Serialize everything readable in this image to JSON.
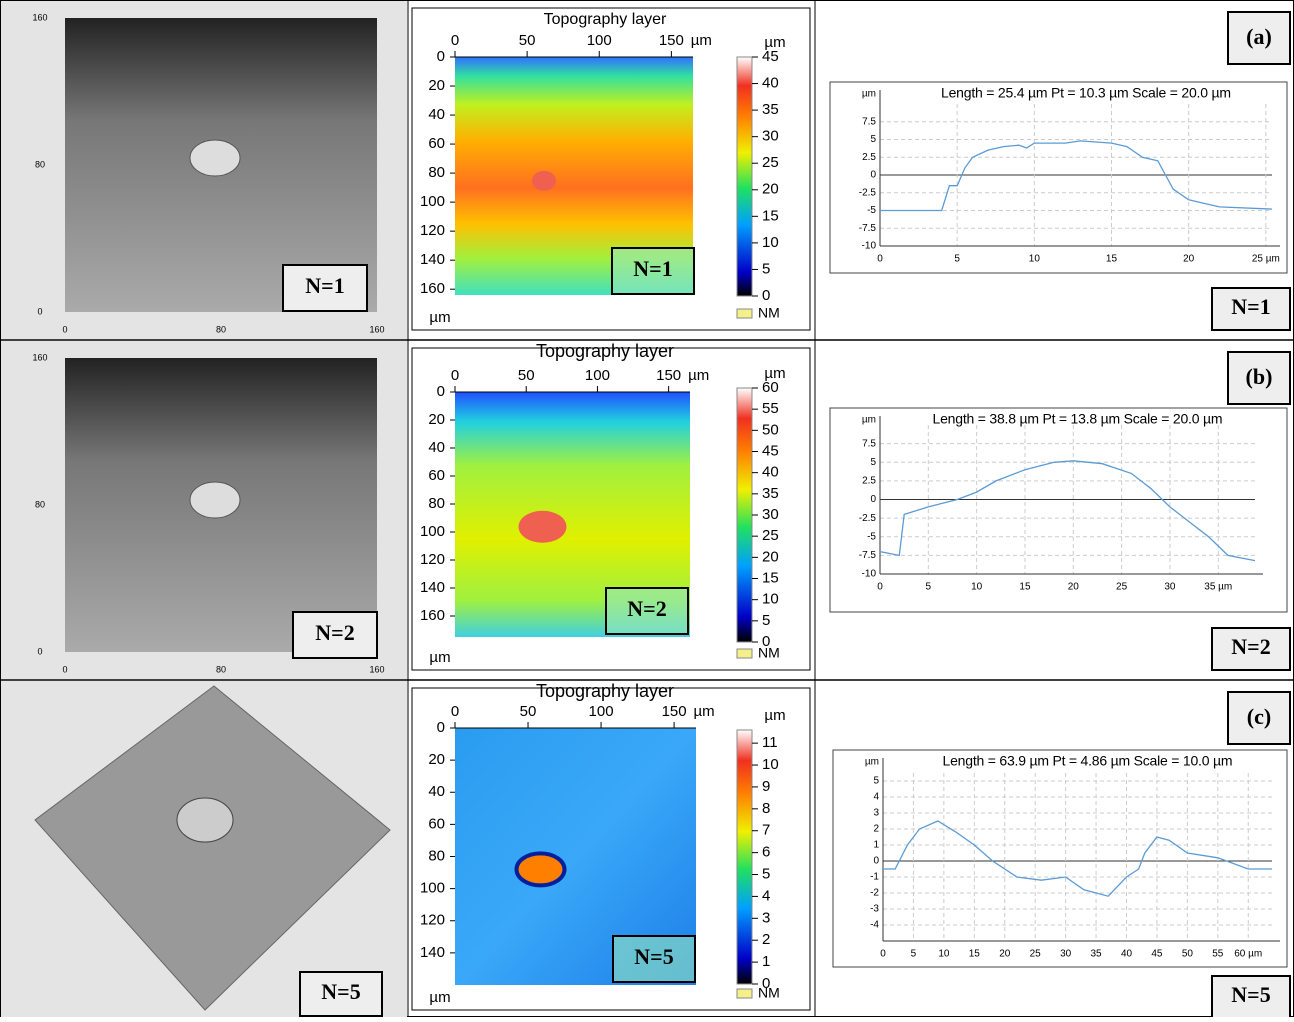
{
  "panels": [
    {
      "label": "(a)",
      "n_label": "N=1",
      "micrograph": {
        "ticks": [
          0,
          80,
          160
        ],
        "lim": [
          0,
          160
        ]
      },
      "topography": {
        "title": "Topography layer",
        "xticks": [
          0,
          50,
          100,
          150
        ],
        "x_unit": "µm",
        "xlim": [
          0,
          165
        ],
        "yticks": [
          0,
          20,
          40,
          60,
          80,
          100,
          120,
          140,
          160
        ],
        "ylim": [
          0,
          164
        ],
        "y_unit": "µm",
        "colorbar_unit": "µm",
        "colorbar_ticks": [
          0,
          5,
          10,
          15,
          20,
          25,
          30,
          35,
          40,
          45
        ],
        "colorbar_lim": [
          0,
          45
        ],
        "nm_label": "NM"
      },
      "profile": {
        "header": "Length = 25.4 µm  Pt = 10.3 µm  Scale = 20.0 µm",
        "y_unit": "µm",
        "color": "#5b9bd5",
        "xlim": [
          0,
          25.4
        ],
        "ylim": [
          -10,
          10
        ],
        "xticks": [
          0,
          5,
          10,
          15,
          20,
          {
            "value": 25,
            "label": "25 µm"
          }
        ],
        "yticks": [
          7.5,
          5,
          2.5,
          0,
          -2.5,
          -5,
          -7.5,
          -10
        ],
        "x": [
          0,
          4,
          4.5,
          5,
          5.5,
          6,
          7,
          8,
          9,
          9.5,
          10,
          12,
          13,
          15,
          16,
          17,
          18,
          18.5,
          19,
          20,
          21,
          22,
          25.4
        ],
        "values": [
          -5,
          -5,
          -1.5,
          -1.5,
          1,
          2.5,
          3.5,
          4,
          4.2,
          3.8,
          4.5,
          4.5,
          4.8,
          4.5,
          4,
          2.5,
          2,
          0,
          -2,
          -3.5,
          -4,
          -4.5,
          -4.8
        ]
      }
    },
    {
      "label": "(b)",
      "n_label": "N=2",
      "micrograph": {
        "ticks": [
          0,
          80,
          160
        ],
        "lim": [
          0,
          160
        ]
      },
      "topography": {
        "title": "Topography layer",
        "xticks": [
          0,
          50,
          100,
          150
        ],
        "x_unit": "µm",
        "xlim": [
          0,
          165
        ],
        "yticks": [
          0,
          20,
          40,
          60,
          80,
          100,
          120,
          140,
          160
        ],
        "ylim": [
          0,
          175
        ],
        "y_unit": "µm",
        "colorbar_unit": "µm",
        "colorbar_ticks": [
          0,
          5,
          10,
          15,
          20,
          25,
          30,
          35,
          40,
          45,
          50,
          55,
          60
        ],
        "colorbar_lim": [
          0,
          60
        ],
        "nm_label": "NM"
      },
      "profile": {
        "header": "Length = 38.8 µm  Pt = 13.8 µm  Scale = 20.0 µm",
        "y_unit": "µm",
        "color": "#5b9bd5",
        "xlim": [
          0,
          38.8
        ],
        "ylim": [
          -10,
          10
        ],
        "xticks": [
          0,
          5,
          10,
          15,
          20,
          25,
          30,
          {
            "value": 35,
            "label": "35 µm"
          }
        ],
        "yticks": [
          7.5,
          5,
          2.5,
          0,
          -2.5,
          -5,
          -7.5,
          -10
        ],
        "x": [
          0,
          2,
          2.5,
          5,
          8,
          10,
          12,
          15,
          18,
          20,
          23,
          26,
          28,
          30,
          32,
          34,
          36,
          38.8
        ],
        "values": [
          -7,
          -7.5,
          -2,
          -1,
          0,
          1,
          2.5,
          4,
          5,
          5.2,
          4.8,
          3.5,
          1.5,
          -1,
          -3,
          -5,
          -7.5,
          -8.2
        ]
      }
    },
    {
      "label": "(c)",
      "n_label": "N=5",
      "topography": {
        "title": "Topography layer",
        "xticks": [
          0,
          50,
          100,
          150
        ],
        "x_unit": "µm",
        "xlim": [
          0,
          165
        ],
        "yticks": [
          0,
          20,
          40,
          60,
          80,
          100,
          120,
          140
        ],
        "ylim": [
          0,
          160
        ],
        "y_unit": "µm",
        "colorbar_unit": "µm",
        "colorbar_ticks": [
          0,
          1,
          2,
          3,
          4,
          5,
          6,
          7,
          8,
          9,
          10,
          11
        ],
        "colorbar_lim": [
          0,
          11.6
        ],
        "nm_label": "NM"
      },
      "profile": {
        "header": "Length = 63.9 µm  Pt = 4.86 µm  Scale = 10.0 µm",
        "y_unit": "µm",
        "color": "#5b9bd5",
        "xlim": [
          0,
          63.9
        ],
        "ylim": [
          -5,
          5.5
        ],
        "xticks": [
          0,
          5,
          10,
          15,
          20,
          25,
          30,
          35,
          40,
          45,
          50,
          55,
          {
            "value": 60,
            "label": "60 µm"
          }
        ],
        "yticks": [
          5,
          4,
          3,
          2,
          1,
          0,
          -1,
          -2,
          -3,
          -4
        ],
        "x": [
          0,
          2,
          4,
          6,
          9,
          12,
          15,
          18,
          22,
          26,
          30,
          33,
          37,
          40,
          42,
          43,
          45,
          47,
          50,
          55,
          60,
          63.9
        ],
        "values": [
          -0.5,
          -0.5,
          1,
          2,
          2.5,
          1.8,
          1,
          0,
          -1,
          -1.2,
          -1,
          -1.8,
          -2.2,
          -1,
          -0.5,
          0.5,
          1.5,
          1.3,
          0.5,
          0.2,
          -0.5,
          -0.5
        ]
      }
    }
  ]
}
